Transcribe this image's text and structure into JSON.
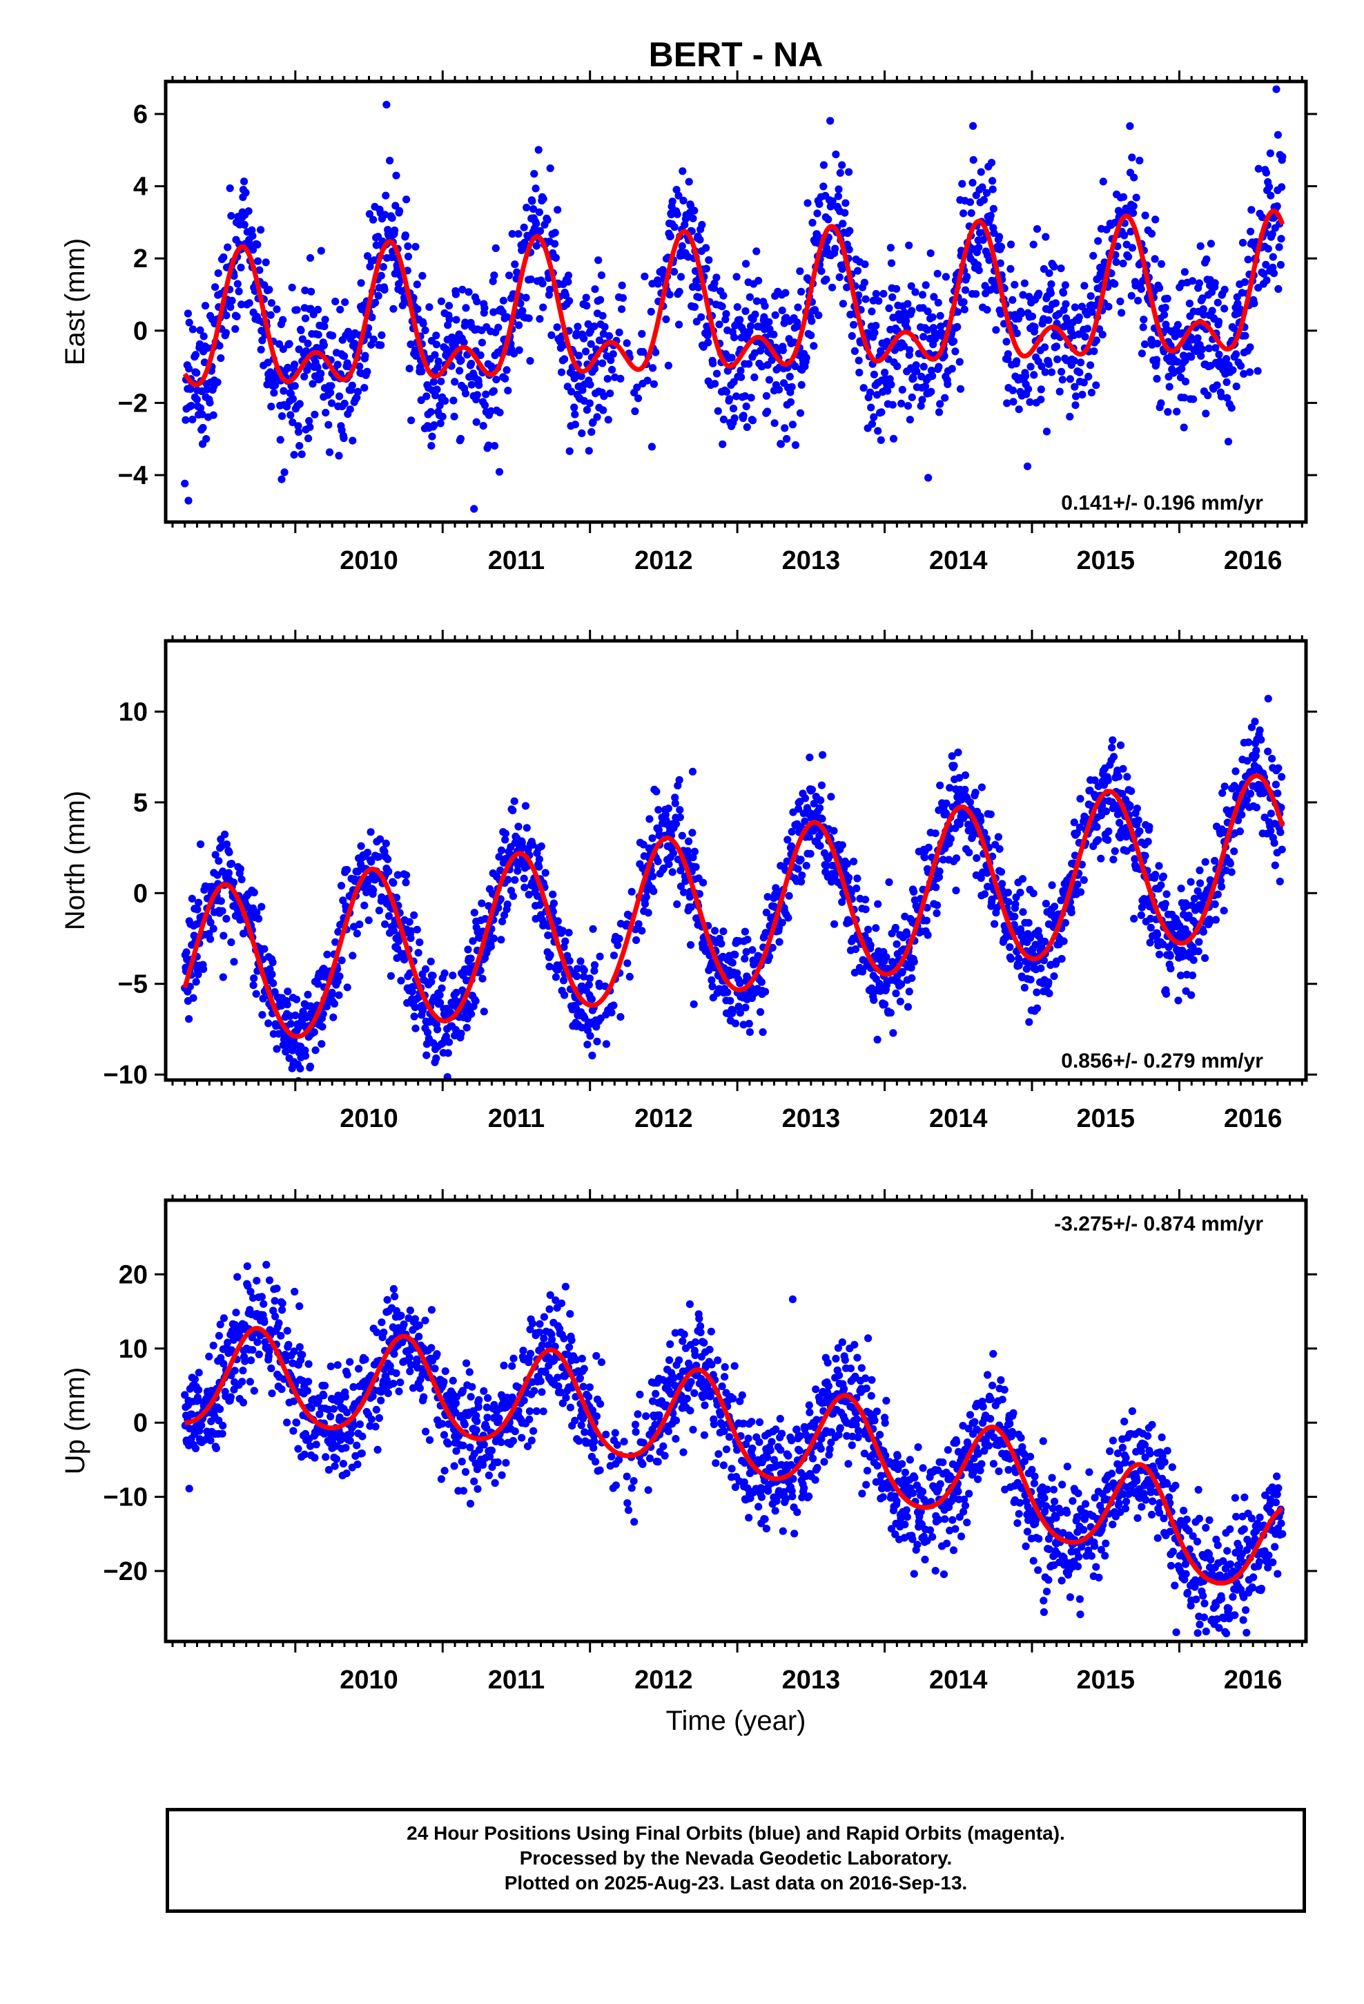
{
  "title": "BERT - NA",
  "xlabel": "Time (year)",
  "footer": {
    "line1": "24 Hour Positions Using Final Orbits (blue) and Rapid Orbits (magenta).",
    "line2": "Processed by the Nevada Geodetic Laboratory.",
    "line3": "Plotted on 2025-Aug-23. Last data on 2016-Sep-13."
  },
  "colors": {
    "points": "#0000ff",
    "fit": "#ff0000",
    "axes": "#000000"
  },
  "chart_data": [
    {
      "type": "scatter",
      "panel": "east",
      "ylabel": "East (mm)",
      "xlim": [
        2009.12,
        2016.86
      ],
      "ylim": [
        -5.3,
        6.9
      ],
      "yticks": [
        -4,
        -2,
        0,
        2,
        4,
        6
      ],
      "xticks": [
        2010,
        2011,
        2012,
        2013,
        2014,
        2015,
        2016
      ],
      "rate_label": "0.141+/- 0.196 mm/yr",
      "rate_position": "bottom-right",
      "x_start": 2009.25,
      "x_end": 2016.7,
      "gap": [
        2012.12,
        2012.5
      ],
      "noise": 1.1,
      "fit": {
        "intercept": 0.3,
        "trend": 0.141,
        "t0": 2013.0,
        "annual_amp": 1.5,
        "annual_peak": 2009.64,
        "semiannual_amp": 1.0,
        "semiannual_peak": 2009.64,
        "quad": 0
      },
      "series": [
        {
          "kind": "points",
          "color": "#0000ff"
        },
        {
          "kind": "model",
          "color": "#ff0000"
        }
      ]
    },
    {
      "type": "scatter",
      "panel": "north",
      "ylabel": "North (mm)",
      "xlim": [
        2009.12,
        2016.86
      ],
      "ylim": [
        -10.3,
        13.9
      ],
      "yticks": [
        -10,
        -5,
        0,
        5,
        10
      ],
      "xticks": [
        2010,
        2011,
        2012,
        2013,
        2014,
        2015,
        2016
      ],
      "rate_label": "0.856+/- 0.279 mm/yr",
      "rate_position": "bottom-right",
      "x_start": 2009.25,
      "x_end": 2016.7,
      "gap": [
        2012.05,
        2012.35
      ],
      "noise": 1.4,
      "fit": {
        "intercept": -1.2,
        "trend": 0.856,
        "t0": 2013.0,
        "annual_amp": 4.4,
        "annual_peak": 2009.52,
        "semiannual_amp": 0.25,
        "semiannual_peak": 2009.52,
        "quad": 0
      },
      "series": [
        {
          "kind": "points",
          "color": "#0000ff"
        },
        {
          "kind": "model",
          "color": "#ff0000"
        }
      ]
    },
    {
      "type": "scatter",
      "panel": "up",
      "ylabel": "Up (mm)",
      "xlim": [
        2009.12,
        2016.86
      ],
      "ylim": [
        -29.5,
        30.0
      ],
      "yticks": [
        -20,
        -10,
        0,
        10,
        20
      ],
      "xticks": [
        2010,
        2011,
        2012,
        2013,
        2014,
        2015,
        2016
      ],
      "rate_label": "-3.275+/- 0.874 mm/yr",
      "rate_position": "top-right",
      "x_start": 2009.25,
      "x_end": 2016.7,
      "gap": [
        2012.05,
        2012.42
      ],
      "noise": 3.8,
      "fit": {
        "intercept": -1.0,
        "trend": -3.275,
        "t0": 2013.0,
        "annual_amp": 6.5,
        "annual_peak": 2009.74,
        "semiannual_amp": 0.8,
        "semiannual_peak": 2009.74,
        "quad": -0.4
      },
      "series": [
        {
          "kind": "points",
          "color": "#0000ff"
        },
        {
          "kind": "model",
          "color": "#ff0000"
        }
      ]
    }
  ]
}
